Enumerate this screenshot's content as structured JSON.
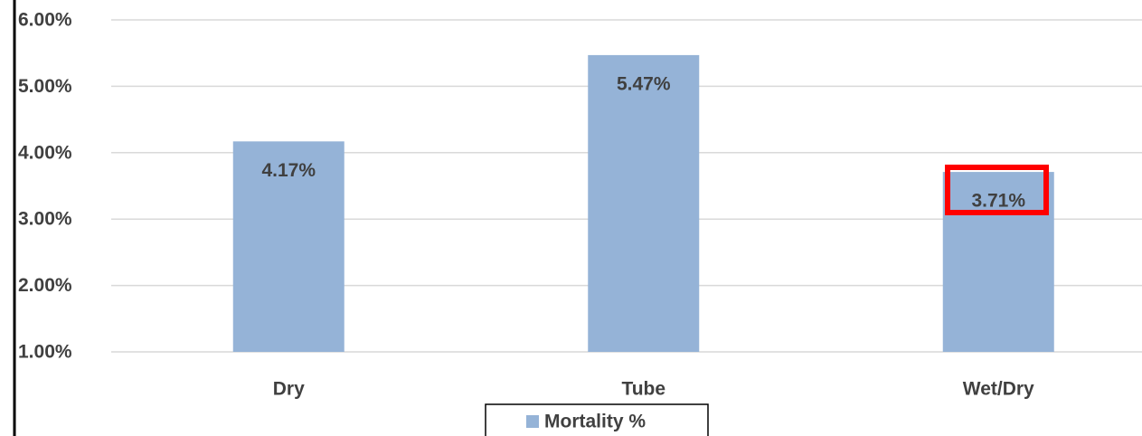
{
  "chart_data": {
    "type": "bar",
    "categories": [
      "Dry",
      "Tube",
      "Wet/Dry"
    ],
    "series": [
      {
        "name": "Mortality %",
        "color": "#95b3d7",
        "values": [
          4.17,
          5.47,
          3.71
        ],
        "value_labels": [
          "4.17%",
          "5.47%",
          "3.71%"
        ]
      }
    ],
    "ylim": [
      1,
      6
    ],
    "yticks": [
      {
        "value": 1,
        "label": "1.00%"
      },
      {
        "value": 2,
        "label": "2.00%"
      },
      {
        "value": 3,
        "label": "3.00%"
      },
      {
        "value": 4,
        "label": "4.00%"
      },
      {
        "value": 5,
        "label": "5.00%"
      },
      {
        "value": 6,
        "label": "6.00%"
      }
    ],
    "grid": true,
    "legend": "bottom"
  }
}
